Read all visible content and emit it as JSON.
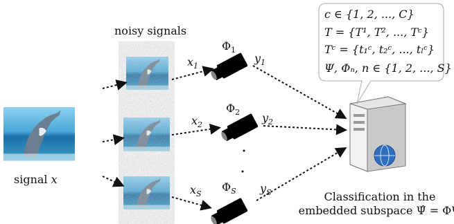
{
  "signal_label": {
    "text": "signal",
    "var": "x"
  },
  "noisy_title": "noisy signals",
  "rows": [
    {
      "x": {
        "base": "x",
        "sub": "1"
      },
      "phi": {
        "base": "Φ",
        "sub": "1"
      },
      "y": {
        "base": "y",
        "sub": "1"
      }
    },
    {
      "x": {
        "base": "x",
        "sub": "2"
      },
      "phi": {
        "base": "Φ",
        "sub": "2"
      },
      "y": {
        "base": "y",
        "sub": "2"
      }
    },
    {
      "x": {
        "base": "x",
        "sub": "S"
      },
      "phi": {
        "base": "Φ",
        "sub": "S"
      },
      "y": {
        "base": "y",
        "sub": "S"
      }
    }
  ],
  "bubble": [
    "c ∈ {1, 2, ..., C}",
    "T = {T¹, T², ..., Tᶜ}",
    "Tᶜ = {t₁ᶜ, t₂ᶜ, ..., tₗᶜ}",
    "Ψ, Φₙ, n ∈ {1, 2, ..., S}"
  ],
  "caption": [
    "Classification in the",
    "embedded subspace Ψ̂ = ΦΨ"
  ]
}
